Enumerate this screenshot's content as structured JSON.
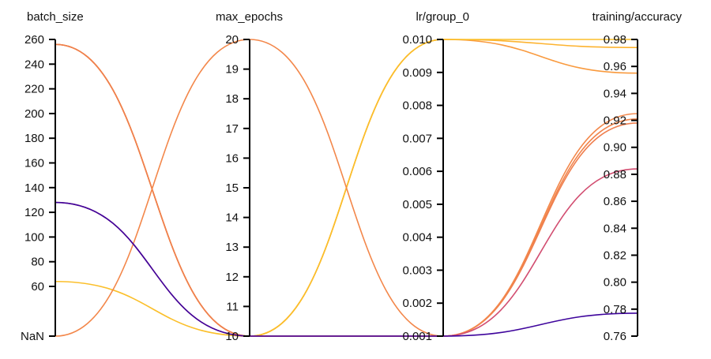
{
  "chart_data": {
    "type": "parallel_coordinates",
    "axes": [
      {
        "name": "batch_size",
        "range": [
          60,
          260
        ],
        "ticks": [
          "260",
          "240",
          "220",
          "200",
          "180",
          "160",
          "140",
          "120",
          "100",
          "80",
          "60",
          "NaN"
        ],
        "tick_values": [
          260,
          240,
          220,
          200,
          180,
          160,
          140,
          120,
          100,
          80,
          60,
          null
        ]
      },
      {
        "name": "max_epochs",
        "range": [
          10,
          20
        ],
        "ticks": [
          "20",
          "19",
          "18",
          "17",
          "16",
          "15",
          "14",
          "13",
          "12",
          "11",
          "10"
        ],
        "tick_values": [
          20,
          19,
          18,
          17,
          16,
          15,
          14,
          13,
          12,
          11,
          10
        ]
      },
      {
        "name": "lr/group_0",
        "range": [
          0.001,
          0.01
        ],
        "ticks": [
          "0.010",
          "0.009",
          "0.008",
          "0.007",
          "0.006",
          "0.005",
          "0.004",
          "0.003",
          "0.002",
          "0.001"
        ],
        "tick_values": [
          0.01,
          0.009,
          0.008,
          0.007,
          0.006,
          0.005,
          0.004,
          0.003,
          0.002,
          0.001
        ]
      },
      {
        "name": "training/accuracy",
        "range": [
          0.76,
          0.98
        ],
        "ticks": [
          "0.98",
          "0.96",
          "0.94",
          "0.92",
          "0.90",
          "0.88",
          "0.86",
          "0.84",
          "0.82",
          "0.80",
          "0.78",
          "0.76"
        ],
        "tick_values": [
          0.98,
          0.96,
          0.94,
          0.92,
          0.9,
          0.88,
          0.86,
          0.84,
          0.82,
          0.8,
          0.78,
          0.76
        ]
      }
    ],
    "color_by": "training/accuracy",
    "colormap": [
      "#0d0887",
      "#7e03a8",
      "#cc4778",
      "#f89540",
      "#f0f921"
    ],
    "runs": [
      {
        "values": [
          256,
          10,
          0.01,
          0.955
        ],
        "color": "#f99a3e"
      },
      {
        "values": [
          256,
          10,
          0.01,
          0.974
        ],
        "color": "#fdb32f"
      },
      {
        "values": [
          64,
          10,
          0.01,
          0.98
        ],
        "color": "#fbbf2a"
      },
      {
        "values": [
          256,
          10,
          0.001,
          0.921
        ],
        "color": "#f1844b"
      },
      {
        "values": [
          256,
          10,
          0.001,
          0.918
        ],
        "color": "#ef7f4f"
      },
      {
        "values": [
          null,
          20,
          0.001,
          0.925
        ],
        "color": "#f3874a"
      },
      {
        "values": [
          128,
          10,
          0.001,
          0.884
        ],
        "color": "#d24e71"
      },
      {
        "values": [
          128,
          10,
          0.001,
          0.777
        ],
        "color": "#3e049c"
      }
    ]
  }
}
